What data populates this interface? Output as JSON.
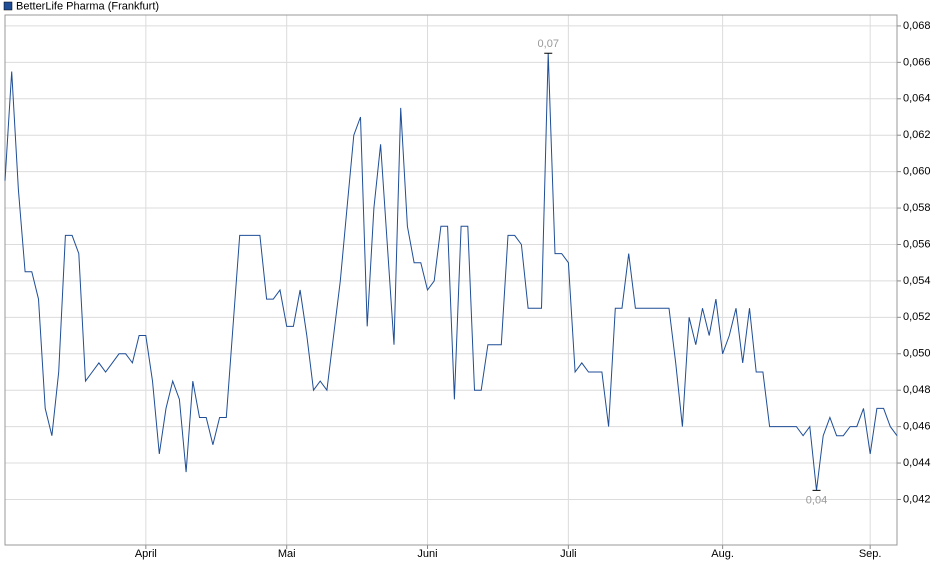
{
  "chart_data": {
    "type": "line",
    "series": [
      {
        "name": "BetterLife Pharma (Frankfurt)",
        "color": "#1f4e96",
        "values": [
          0.0595,
          0.0655,
          0.059,
          0.0545,
          0.0545,
          0.053,
          0.047,
          0.0455,
          0.049,
          0.0565,
          0.0565,
          0.0555,
          0.0485,
          0.049,
          0.0495,
          0.049,
          0.0495,
          0.05,
          0.05,
          0.0495,
          0.051,
          0.051,
          0.0485,
          0.0445,
          0.047,
          0.0485,
          0.0475,
          0.0435,
          0.0485,
          0.0465,
          0.0465,
          0.045,
          0.0465,
          0.0465,
          0.0515,
          0.0565,
          0.0565,
          0.0565,
          0.0565,
          0.053,
          0.053,
          0.0535,
          0.0515,
          0.0515,
          0.0535,
          0.051,
          0.048,
          0.0485,
          0.048,
          0.051,
          0.054,
          0.058,
          0.062,
          0.063,
          0.0515,
          0.058,
          0.0615,
          0.056,
          0.0505,
          0.0635,
          0.057,
          0.055,
          0.055,
          0.0535,
          0.054,
          0.057,
          0.057,
          0.0475,
          0.057,
          0.057,
          0.048,
          0.048,
          0.0505,
          0.0505,
          0.0505,
          0.0565,
          0.0565,
          0.056,
          0.0525,
          0.0525,
          0.0525,
          0.0665,
          0.0555,
          0.0555,
          0.055,
          0.049,
          0.0495,
          0.049,
          0.049,
          0.049,
          0.046,
          0.0525,
          0.0525,
          0.0555,
          0.0525,
          0.0525,
          0.0525,
          0.0525,
          0.0525,
          0.0525,
          0.0495,
          0.046,
          0.052,
          0.0505,
          0.0525,
          0.051,
          0.053,
          0.05,
          0.051,
          0.0525,
          0.0495,
          0.0525,
          0.049,
          0.049,
          0.046,
          0.046,
          0.046,
          0.046,
          0.046,
          0.0455,
          0.046,
          0.0425,
          0.0455,
          0.0465,
          0.0455,
          0.0455,
          0.046,
          0.046,
          0.047,
          0.0445,
          0.047,
          0.047,
          0.046,
          0.0455
        ],
        "value_labels": [
          null,
          null,
          null,
          null,
          null,
          null,
          null,
          null,
          null,
          null,
          null,
          null,
          null,
          null,
          null,
          null,
          null,
          null,
          null,
          null,
          null,
          null,
          null,
          null,
          null,
          null,
          null,
          null,
          null,
          null,
          null,
          null,
          null,
          null,
          null,
          null,
          null,
          null,
          null,
          null,
          null,
          null,
          null,
          null,
          null,
          null,
          null,
          null,
          null,
          null,
          null,
          null,
          null,
          null,
          null,
          null,
          null,
          null,
          null,
          null,
          null,
          null,
          null,
          null,
          null,
          null,
          null,
          null,
          null,
          null,
          null,
          null,
          null,
          null,
          null,
          null,
          null,
          null,
          null,
          null,
          null,
          "0,07",
          null,
          null,
          null,
          null,
          null,
          null,
          null,
          null,
          null,
          null,
          null,
          null,
          null,
          null,
          null,
          null,
          null,
          null,
          null,
          null,
          null,
          null,
          null,
          null,
          null,
          null,
          null,
          null,
          null,
          null,
          null,
          null,
          null,
          null,
          null,
          null,
          null,
          null,
          null,
          "0,04",
          null,
          null,
          null,
          null,
          null,
          null,
          null,
          null,
          null,
          null,
          null,
          null
        ]
      }
    ],
    "categories": [
      null,
      null,
      null,
      null,
      null,
      null,
      null,
      null,
      null,
      null,
      null,
      null,
      null,
      null,
      null,
      null,
      null,
      null,
      null,
      null,
      null,
      "April",
      null,
      null,
      null,
      null,
      null,
      null,
      null,
      null,
      null,
      null,
      null,
      null,
      null,
      null,
      null,
      null,
      null,
      null,
      null,
      null,
      "Mai",
      null,
      null,
      null,
      null,
      null,
      null,
      null,
      null,
      null,
      null,
      null,
      null,
      null,
      null,
      null,
      null,
      null,
      null,
      null,
      null,
      "Juni",
      null,
      null,
      null,
      null,
      null,
      null,
      null,
      null,
      null,
      null,
      null,
      null,
      null,
      null,
      null,
      null,
      null,
      null,
      null,
      null,
      "Juli",
      null,
      null,
      null,
      null,
      null,
      null,
      null,
      null,
      null,
      null,
      null,
      null,
      null,
      null,
      null,
      null,
      null,
      null,
      null,
      null,
      null,
      null,
      "Aug.",
      null,
      null,
      null,
      null,
      null,
      null,
      null,
      null,
      null,
      null,
      null,
      null,
      null,
      null,
      null,
      null,
      null,
      null,
      null,
      null,
      null,
      "Sep.",
      null,
      null,
      null,
      null
    ],
    "ylim": [
      0.0395,
      0.0686
    ],
    "yticks": [
      {
        "value": 0.042,
        "label": "0,042"
      },
      {
        "value": 0.044,
        "label": "0,044"
      },
      {
        "value": 0.046,
        "label": "0,046"
      },
      {
        "value": 0.048,
        "label": "0,048"
      },
      {
        "value": 0.05,
        "label": "0,050"
      },
      {
        "value": 0.052,
        "label": "0,052"
      },
      {
        "value": 0.054,
        "label": "0,054"
      },
      {
        "value": 0.056,
        "label": "0,056"
      },
      {
        "value": 0.058,
        "label": "0,058"
      },
      {
        "value": 0.06,
        "label": "0,060"
      },
      {
        "value": 0.062,
        "label": "0,062"
      },
      {
        "value": 0.064,
        "label": "0,064"
      },
      {
        "value": 0.066,
        "label": "0,066"
      },
      {
        "value": 0.068,
        "label": "0,068"
      }
    ],
    "grid": true,
    "legend": "top-left"
  }
}
